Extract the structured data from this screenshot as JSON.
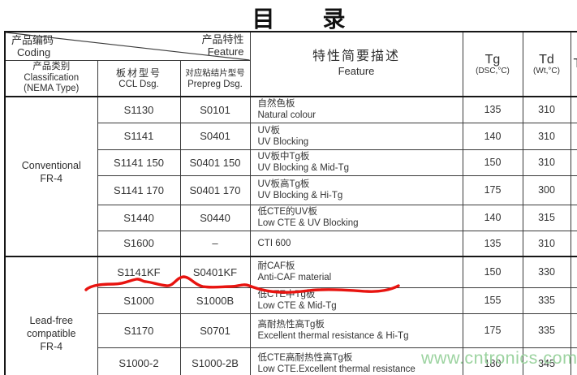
{
  "page_title": "目　　录",
  "watermark": "www.cntronics.com",
  "colors": {
    "annotation_red": "#e81410",
    "watermark_green": "#9cd3a0",
    "grid_line": "#3a3a3a"
  },
  "table": {
    "header": {
      "coding_zh": "产品编码",
      "coding_en": "Coding",
      "feature_corner_zh": "产品特性",
      "feature_corner_en": "Feature",
      "classification_zh": "产品类别",
      "classification_en": "Classification",
      "classification_note": "(NEMA Type)",
      "ccl_zh": "板材型号",
      "ccl_en": "CCL Dsg.",
      "prepreg_zh": "对应粘结片型号",
      "prepreg_en": "Prepreg Dsg.",
      "feature_desc_zh": "特性简要描述",
      "feature_desc_en": "Feature",
      "tg_label": "Tg",
      "tg_unit": "(DSC,°C)",
      "td_label": "Td",
      "td_unit": "(Wt,°C)",
      "next_col_partial": "T"
    },
    "groups": [
      {
        "classification": "Conventional\nFR-4",
        "rows": [
          {
            "ccl": "S1130",
            "prepreg": "S0101",
            "feature_zh": "自然色板",
            "feature_en": "Natural colour",
            "tg": "135",
            "td": "310"
          },
          {
            "ccl": "S1141",
            "prepreg": "S0401",
            "feature_zh": "UV板",
            "feature_en": "UV Blocking",
            "tg": "140",
            "td": "310"
          },
          {
            "ccl": "S1141 150",
            "prepreg": "S0401 150",
            "feature_zh": "UV板中Tg板",
            "feature_en": "UV Blocking & Mid-Tg",
            "tg": "150",
            "td": "310"
          },
          {
            "ccl": "S1141 170",
            "prepreg": "S0401 170",
            "feature_zh": "UV板高Tg板",
            "feature_en": "UV Blocking & Hi-Tg",
            "tg": "175",
            "td": "300"
          },
          {
            "ccl": "S1440",
            "prepreg": "S0440",
            "feature_zh": "低CTE的UV板",
            "feature_en": "Low CTE & UV Blocking",
            "tg": "140",
            "td": "315"
          },
          {
            "ccl": "S1600",
            "prepreg": "–",
            "feature_zh": "CTI 600",
            "feature_en": "",
            "tg": "135",
            "td": "310"
          }
        ]
      },
      {
        "classification": "Lead-free\ncompatible\nFR-4",
        "rows": [
          {
            "ccl": "S1141KF",
            "prepreg": "S0401KF",
            "feature_zh": "耐CAF板",
            "feature_en": "Anti-CAF material",
            "tg": "150",
            "td": "330"
          },
          {
            "ccl": "S1000",
            "prepreg": "S1000B",
            "feature_zh": "低CTE中Tg板",
            "feature_en": "Low CTE & Mid-Tg",
            "tg": "155",
            "td": "335"
          },
          {
            "ccl": "S1170",
            "prepreg": "S0701",
            "feature_zh": "高耐热性高Tg板",
            "feature_en": "Excellent thermal resistance & Hi-Tg",
            "tg": "175",
            "td": "335"
          },
          {
            "ccl": "S1000-2",
            "prepreg": "S1000-2B",
            "feature_zh": "低CTE高耐热性高Tg板",
            "feature_en": "Low CTE.Excellent thermal resistance",
            "tg": "180",
            "td": "345"
          }
        ]
      }
    ]
  }
}
